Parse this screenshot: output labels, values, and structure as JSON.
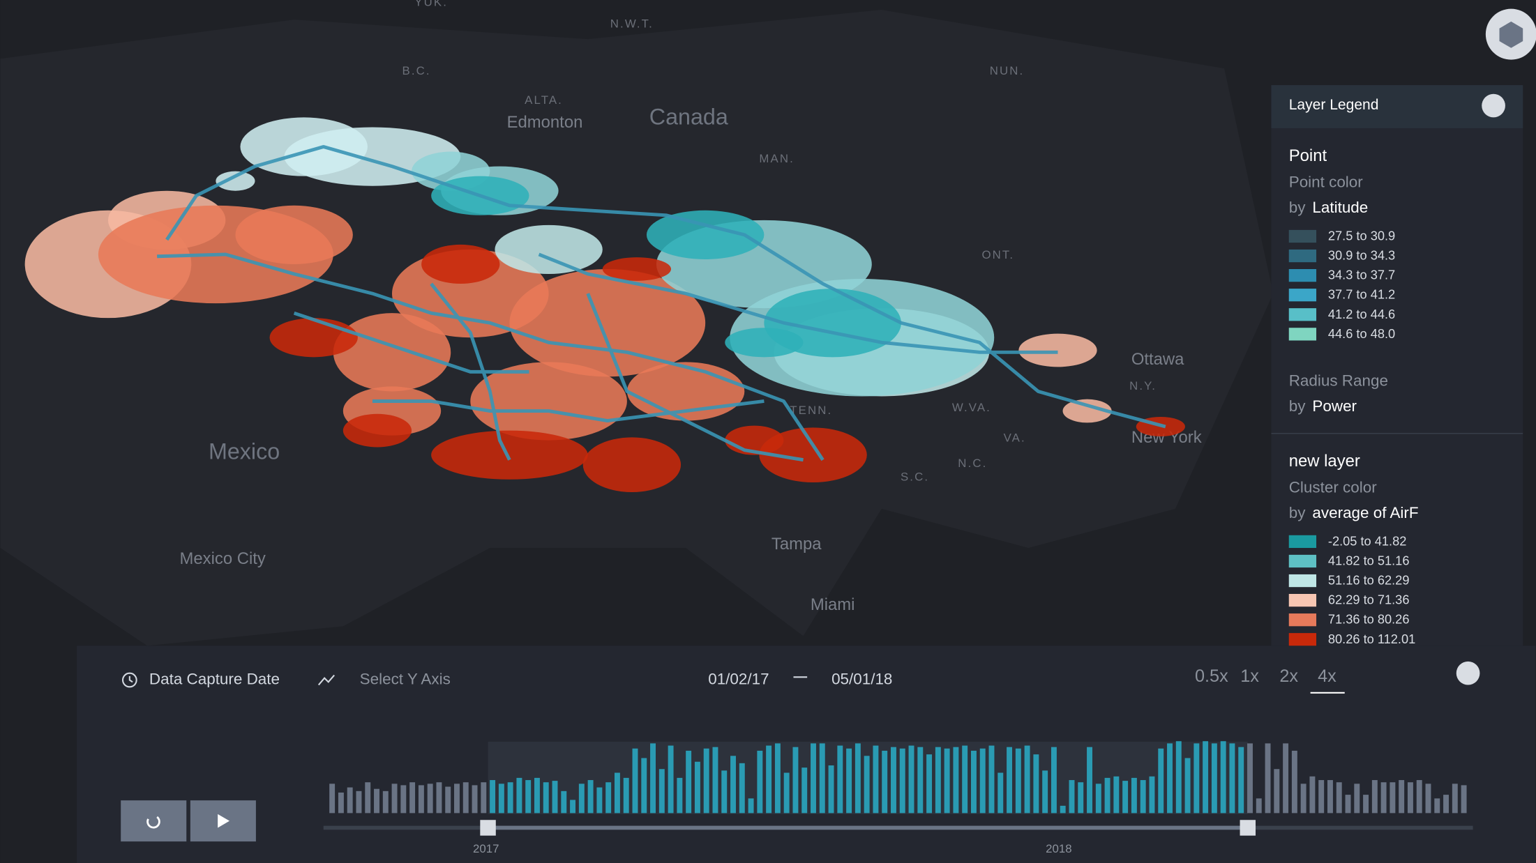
{
  "map": {
    "labels": [
      "YUK.",
      "N.W.T.",
      "B.C.",
      "NUN.",
      "ALTA.",
      "Edmonton",
      "Canada",
      "MAN.",
      "ONT.",
      "Ottawa",
      "N.Y.",
      "TENN.",
      "W.VA.",
      "VA.",
      "New York",
      "N.C.",
      "S.C.",
      "Mexico",
      "Mexico City",
      "Tampa",
      "Miami"
    ]
  },
  "legend": {
    "title": "Layer Legend",
    "point": {
      "name": "Point",
      "channel": "Point color",
      "by": "by",
      "field": "Latitude",
      "items": [
        {
          "label": "27.5 to 30.9",
          "color": "#35505c"
        },
        {
          "label": "30.9 to 34.3",
          "color": "#2f6a80"
        },
        {
          "label": "34.3 to 37.7",
          "color": "#2d8db0"
        },
        {
          "label": "37.7 to 41.2",
          "color": "#3ba6c8"
        },
        {
          "label": "41.2 to 44.6",
          "color": "#58bfc8"
        },
        {
          "label": "44.6 to 48.0",
          "color": "#7fd5c0"
        }
      ],
      "radius": "Radius Range",
      "radius_by": "by",
      "radius_field": "Power"
    },
    "cluster": {
      "name": "new layer",
      "channel": "Cluster color",
      "by": "by",
      "field": "average of AirF",
      "items": [
        {
          "label": "-2.05 to 41.82",
          "color": "#1a9aa0"
        },
        {
          "label": "41.82 to 51.16",
          "color": "#5ec0c4"
        },
        {
          "label": "51.16 to 62.29",
          "color": "#bfe6e6"
        },
        {
          "label": "62.29 to 71.36",
          "color": "#f7c6b3"
        },
        {
          "label": "71.36 to 80.26",
          "color": "#e67a5b"
        },
        {
          "label": "80.26 to 112.01",
          "color": "#c8290a"
        }
      ]
    }
  },
  "timeline": {
    "field": "Data Capture Date",
    "y_axis": "Select Y Axis",
    "start": "01/02/17",
    "end": "05/01/18",
    "speeds": [
      "0.5x",
      "1x",
      "2x",
      "4x"
    ],
    "axis_labels": [
      "2017",
      "2018"
    ],
    "histogram": {
      "ylim": [
        0,
        100
      ],
      "color": "#2a9bb3",
      "inactive_color": "#6a7485",
      "values": [
        40,
        28,
        35,
        30,
        42,
        33,
        30,
        40,
        38,
        42,
        38,
        40,
        42,
        36,
        40,
        42,
        38,
        42,
        45,
        40,
        42,
        48,
        45,
        48,
        42,
        44,
        30,
        18,
        40,
        45,
        35,
        42,
        55,
        48,
        88,
        75,
        95,
        60,
        92,
        48,
        85,
        70,
        88,
        90,
        58,
        78,
        68,
        20,
        85,
        92,
        95,
        55,
        90,
        62,
        95,
        95,
        65,
        92,
        88,
        95,
        78,
        92,
        85,
        90,
        88,
        92,
        90,
        80,
        90,
        88,
        90,
        92,
        85,
        88,
        92,
        55,
        90,
        88,
        92,
        80,
        58,
        90,
        10,
        45,
        42,
        90,
        40,
        48,
        50,
        44,
        48,
        45,
        50,
        88,
        95,
        98,
        75,
        95,
        98,
        95,
        98,
        95,
        90,
        95,
        20,
        95,
        60,
        95,
        85,
        40,
        50,
        45,
        45,
        42,
        25,
        40,
        25,
        45,
        42,
        42,
        45,
        42,
        45,
        40,
        20,
        25,
        40,
        38
      ]
    }
  }
}
